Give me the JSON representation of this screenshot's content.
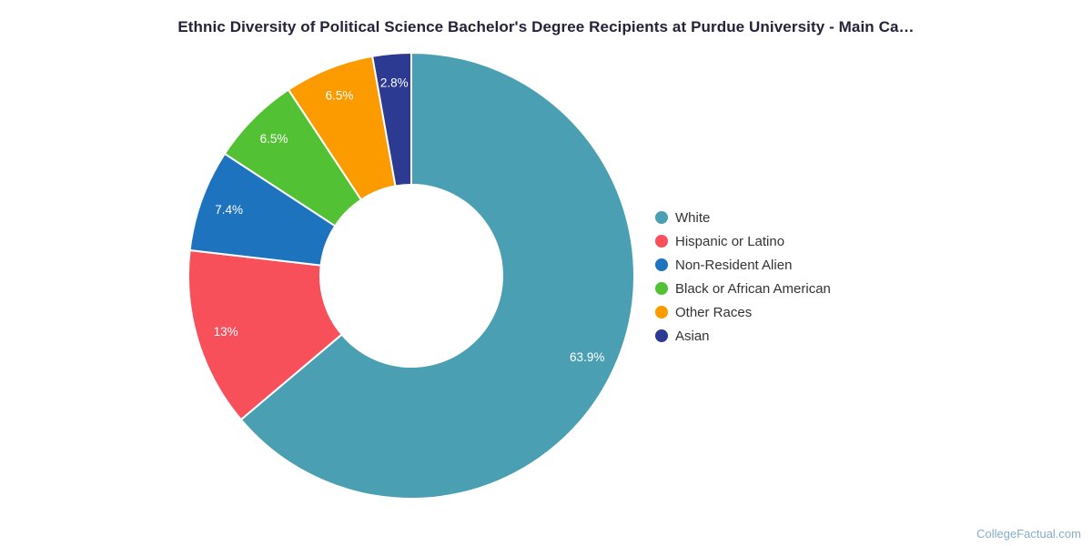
{
  "title": {
    "text": "Ethnic Diversity of Political Science Bachelor's Degree Recipients at Purdue University - Main Ca…"
  },
  "watermark": {
    "text": "CollegeFactual.com"
  },
  "chart_data": {
    "type": "pie",
    "subtype": "donut",
    "title": "Ethnic Diversity of Political Science Bachelor's Degree Recipients at Purdue University - Main Ca…",
    "unit": "%",
    "legend_position": "right",
    "start_angle_deg": 0,
    "direction": "clockwise",
    "categories": [
      "White",
      "Hispanic or Latino",
      "Non-Resident Alien",
      "Black or African American",
      "Other Races",
      "Asian"
    ],
    "values": [
      63.9,
      13,
      7.4,
      6.5,
      6.5,
      2.8
    ],
    "display_labels": [
      "63.9%",
      "13%",
      "7.4%",
      "6.5%",
      "6.5%",
      "2.8%"
    ],
    "colors": [
      "#4AA0B2",
      "#F8505A",
      "#1E73BE",
      "#52C234",
      "#FB9B00",
      "#2C3A92"
    ],
    "slice_label_color": "#ffffff",
    "slice_border_color": "#ffffff"
  }
}
